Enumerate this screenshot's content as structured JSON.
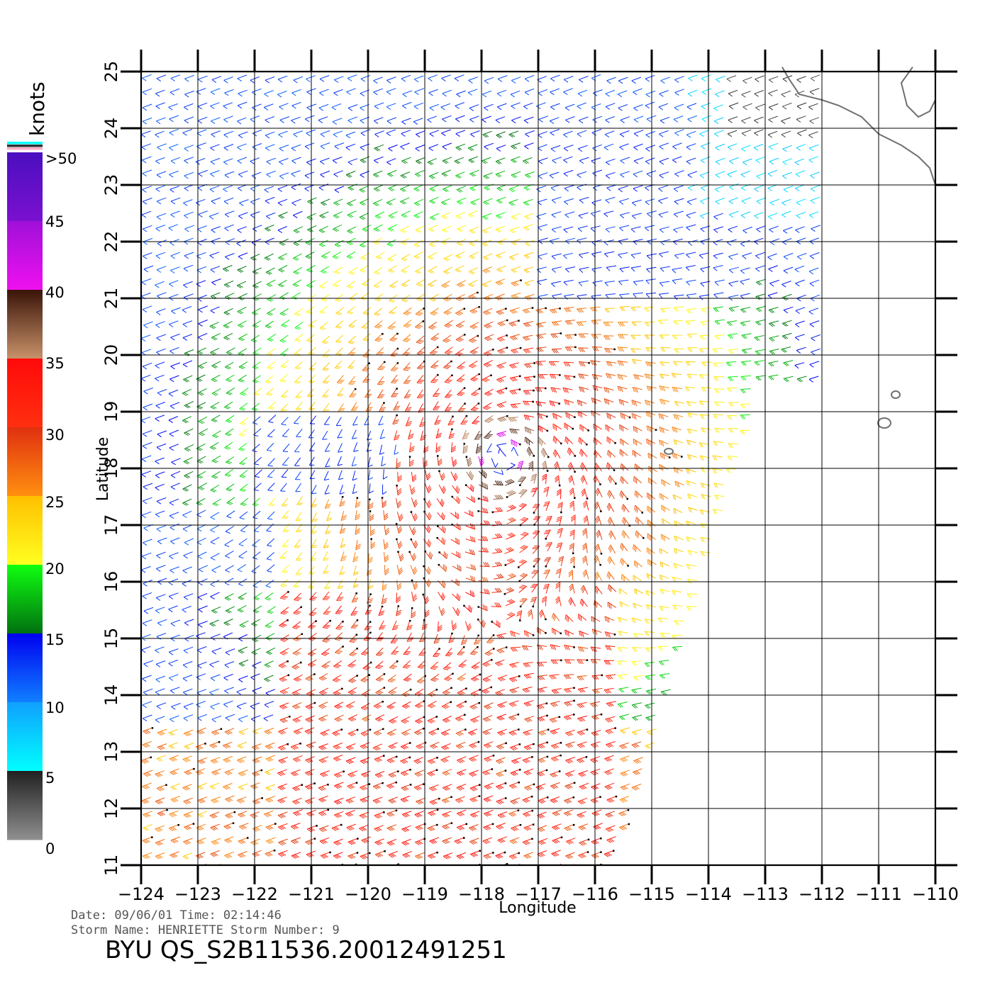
{
  "colorbar": {
    "title": "knots",
    "labels": [
      ">50",
      "45",
      "40",
      "35",
      "30",
      "25",
      "20",
      "15",
      "10",
      "5",
      "0"
    ],
    "bands": [
      {
        "from": 45,
        "to": 50,
        "top": "#4b0fc0",
        "bottom": "#7a10d0"
      },
      {
        "from": 40,
        "to": 45,
        "top": "#9f10d8",
        "bottom": "#f010f0"
      },
      {
        "from": 35,
        "to": 40,
        "top": "#3a1408",
        "bottom": "#c8926a"
      },
      {
        "from": 30,
        "to": 35,
        "top": "#ff0a0a",
        "bottom": "#ff3010"
      },
      {
        "from": 25,
        "to": 30,
        "top": "#e03010",
        "bottom": "#ff9010"
      },
      {
        "from": 20,
        "to": 25,
        "top": "#ffc000",
        "bottom": "#ffff20"
      },
      {
        "from": 15,
        "to": 20,
        "top": "#10ff10",
        "bottom": "#007010"
      },
      {
        "from": 10,
        "to": 15,
        "top": "#0000f0",
        "bottom": "#1080ff"
      },
      {
        "from": 5,
        "to": 10,
        "top": "#10a0ff",
        "bottom": "#00ffff"
      },
      {
        "from": 0,
        "to": 5,
        "top": "#202020",
        "bottom": "#909090"
      }
    ],
    "top_stripe_colors": [
      "#00ffff",
      "#303030",
      "#ffb0c8"
    ]
  },
  "axes": {
    "xlabel": "Longitude",
    "ylabel": "Latitude",
    "x_ticks": [
      "-124",
      "-123",
      "-122",
      "-121",
      "-120",
      "-119",
      "-118",
      "-117",
      "-116",
      "-115",
      "-114",
      "-113",
      "-112",
      "-111",
      "-110"
    ],
    "y_ticks": [
      "11",
      "12",
      "13",
      "14",
      "15",
      "16",
      "17",
      "18",
      "19",
      "20",
      "21",
      "22",
      "23",
      "24",
      "25"
    ],
    "xlim": [
      -124,
      -110
    ],
    "ylim": [
      11,
      25
    ],
    "grid": true
  },
  "wind_field": {
    "storm_center": {
      "lon": -117.6,
      "lat": 18.2
    },
    "vectors": "wind barbs, color-coded by speed (knots)",
    "swath_edge": "diagonal, from (-115.5, 11) to (-113, 19.5)"
  },
  "land": {
    "color": "#707070",
    "features": [
      "Baja California coast",
      "Revillagigedo Islands"
    ]
  },
  "footer": {
    "line1": "Date:  09/06/01     Time:  02:14:46",
    "line2": "Storm  Name:  HENRIETTE     Storm  Number:  9",
    "title": "BYU  QS_S2B11536.20012491251"
  }
}
